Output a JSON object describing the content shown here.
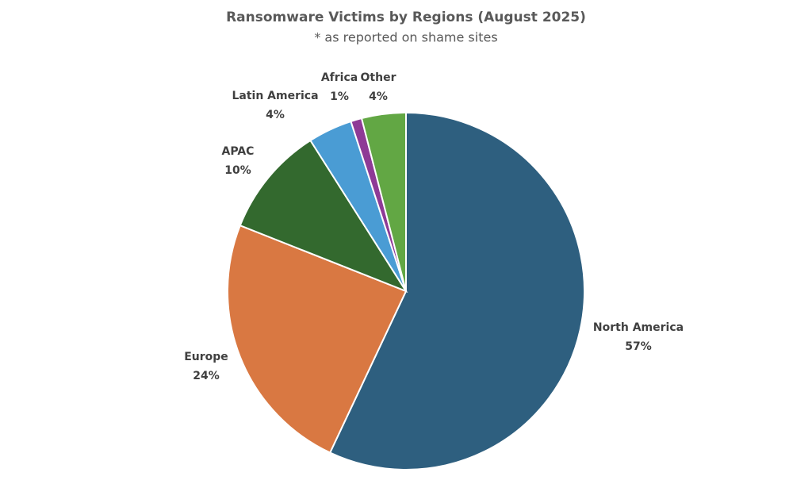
{
  "chart_data": {
    "type": "pie",
    "title": "Ransomware Victims by Regions (August 2025)",
    "subtitle": "* as reported on shame sites",
    "categories": [
      "North America",
      "Europe",
      "APAC",
      "Latin America",
      "Africa",
      "Other"
    ],
    "values": [
      57,
      24,
      10,
      4,
      1,
      4
    ],
    "value_labels": [
      "57%",
      "24%",
      "10%",
      "4%",
      "1%",
      "4%"
    ],
    "colors": [
      "#2e5f7f",
      "#d97842",
      "#33692e",
      "#4a9cd4",
      "#8e3a96",
      "#62a744"
    ]
  }
}
